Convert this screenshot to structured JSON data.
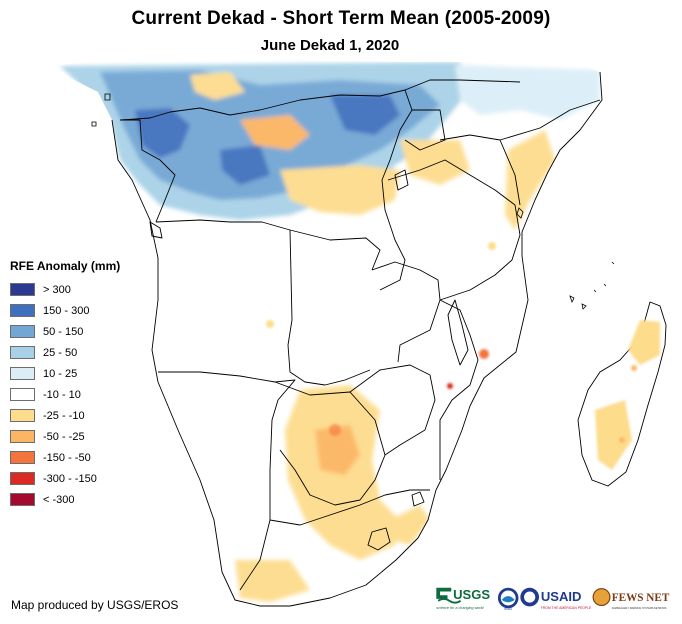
{
  "title": "Current Dekad - Short Term Mean (2005-2009)",
  "subtitle": "June Dekad 1, 2020",
  "legend": {
    "title": "RFE Anomaly (mm)",
    "items": [
      {
        "label": "> 300",
        "color": "#2b3990"
      },
      {
        "label": "150 - 300",
        "color": "#3f6fbd"
      },
      {
        "label": "50 - 150",
        "color": "#72a6d4"
      },
      {
        "label": "25 - 50",
        "color": "#a8d1e7"
      },
      {
        "label": "10 - 25",
        "color": "#dbeef7"
      },
      {
        "label": "-10 - 10",
        "color": "#ffffff"
      },
      {
        "label": "-25 - -10",
        "color": "#fddc8c"
      },
      {
        "label": "-50 - -25",
        "color": "#fcb562"
      },
      {
        "label": "-150 - -50",
        "color": "#f4743e"
      },
      {
        "label": "-300 - -150",
        "color": "#d92b21"
      },
      {
        "label": "< -300",
        "color": "#a30a2d"
      }
    ]
  },
  "credit": "Map produced by USGS/EROS",
  "logos": {
    "usgs": "USGS",
    "usgs_tagline": "science for a changing world",
    "noaa": "NOAA",
    "usaid": "USAID",
    "usaid_tagline": "FROM THE AMERICAN PEOPLE",
    "fewsnet": "FEWS NET",
    "fewsnet_tagline": "FAMINE EARLY WARNING SYSTEMS NETWORK"
  }
}
